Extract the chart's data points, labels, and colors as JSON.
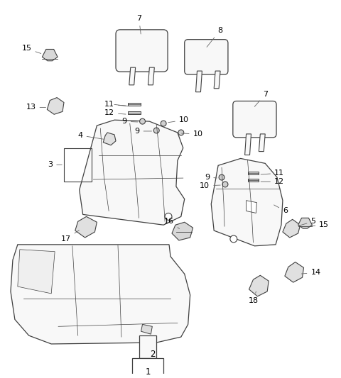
{
  "background_color": "#ffffff",
  "line_color": "#404040",
  "label_color": "#000000",
  "figsize": [
    4.8,
    5.33
  ],
  "dpi": 100,
  "seat_fill": "#f8f8f8",
  "part_fill": "#eeeeee"
}
